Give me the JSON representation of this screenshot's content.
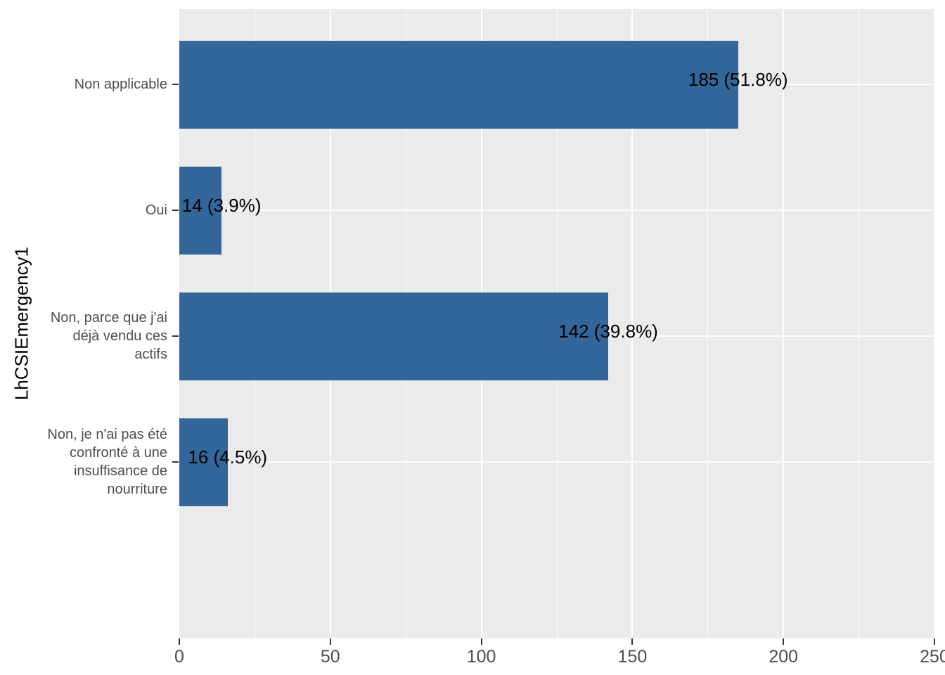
{
  "chart_data": {
    "type": "bar",
    "orientation": "horizontal",
    "title": "",
    "xlabel": "",
    "ylabel": "LhCSIEmergency1",
    "categories": [
      "Non applicable",
      "Oui",
      "Non, parce que j'ai déjà vendu ces actifs",
      "Non, je n'ai pas été confronté à une insuffisance de nourriture"
    ],
    "category_label_lines": [
      [
        "Non applicable"
      ],
      [
        "Oui"
      ],
      [
        "Non, parce que j'ai",
        "déjà vendu ces",
        "actifs"
      ],
      [
        "Non, je n'ai pas été",
        "confronté à une",
        "insuffisance de",
        "nourriture"
      ]
    ],
    "values": [
      185,
      14,
      142,
      16
    ],
    "percents": [
      51.8,
      3.9,
      39.8,
      4.5
    ],
    "bar_labels": [
      "185 (51.8%)",
      "14 (3.9%)",
      "142 (39.8%)",
      "16 (4.5%)"
    ],
    "x_ticks": [
      0,
      50,
      100,
      150,
      200,
      250
    ],
    "x_tick_labels": [
      "0",
      "50",
      "100",
      "150",
      "200",
      "250"
    ],
    "x_minor_ticks": [
      25,
      75,
      125,
      175,
      225
    ],
    "xlim": [
      0,
      250
    ],
    "grid": true,
    "legend_position": "none",
    "colors": {
      "bar_fill": "#33679B",
      "panel_background": "#EBEBEB",
      "gridline": "#FFFFFF",
      "axis_text": "#4D4D4D",
      "axis_tick": "#333333",
      "bar_label_text": "#000000",
      "axis_title_text": "#000000",
      "figure_background": "#FFFFFF"
    }
  }
}
